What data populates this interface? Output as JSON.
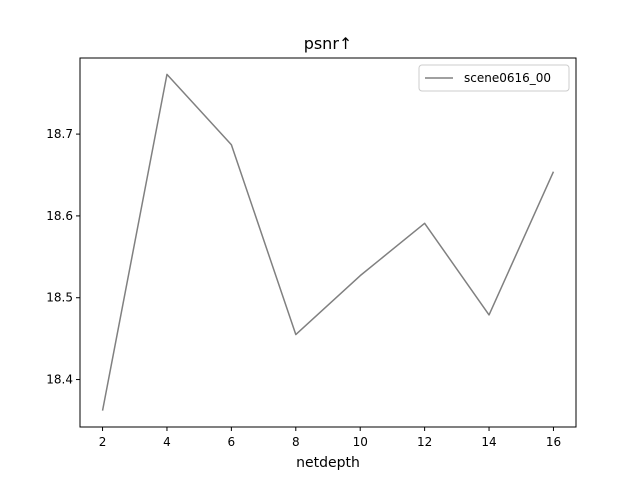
{
  "chart_data": {
    "type": "line",
    "title": "psnr↑",
    "xlabel": "netdepth",
    "ylabel": "",
    "x": [
      2,
      4,
      6,
      8,
      10,
      12,
      14,
      16
    ],
    "xlim": [
      1.3,
      16.7
    ],
    "ylim": [
      18.342,
      18.793
    ],
    "xticks": [
      2,
      4,
      6,
      8,
      10,
      12,
      14,
      16
    ],
    "yticks": [
      18.4,
      18.5,
      18.6,
      18.7
    ],
    "series": [
      {
        "name": "scene0616_00",
        "color": "#808080",
        "values": [
          18.362,
          18.773,
          18.687,
          18.455,
          18.527,
          18.591,
          18.479,
          18.654
        ]
      }
    ],
    "legend": {
      "position": "top-right",
      "entries": [
        "scene0616_00"
      ]
    },
    "grid": false
  }
}
